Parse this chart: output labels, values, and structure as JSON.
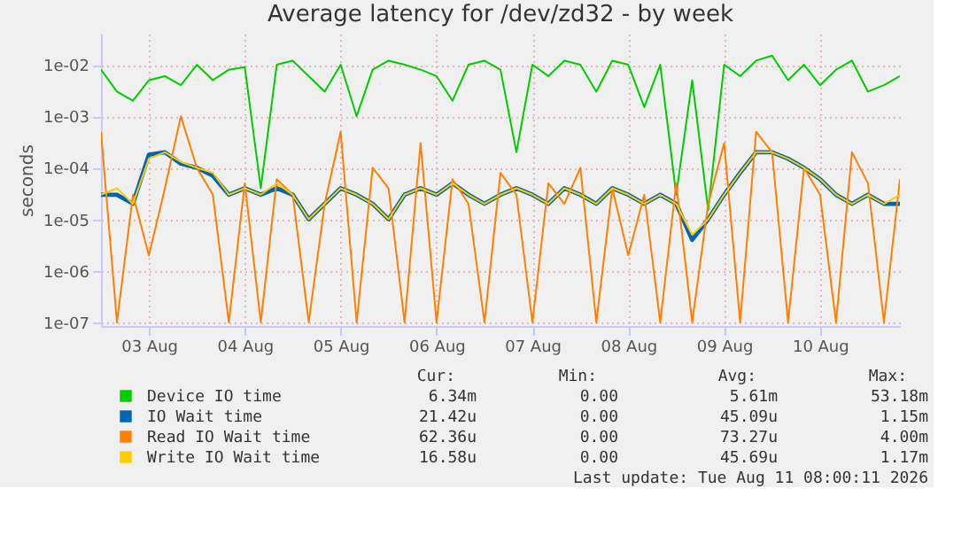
{
  "chart_data": {
    "type": "line",
    "title": "Average latency for /dev/zd32 - by week",
    "ylabel": "seconds",
    "log": "y",
    "grid": true,
    "legend": "bottom",
    "marker": "none",
    "line_style": "solid",
    "xlim": [
      "2026-08-03T00:00",
      "2026-08-11T08:00"
    ],
    "xticks": [
      {
        "value": "2026-08-03T12:00",
        "label": "03 Aug"
      },
      {
        "value": "2026-08-04T12:00",
        "label": "04 Aug"
      },
      {
        "value": "2026-08-05T12:00",
        "label": "05 Aug"
      },
      {
        "value": "2026-08-06T12:00",
        "label": "06 Aug"
      },
      {
        "value": "2026-08-07T12:00",
        "label": "07 Aug"
      },
      {
        "value": "2026-08-08T12:00",
        "label": "08 Aug"
      },
      {
        "value": "2026-08-09T12:00",
        "label": "09 Aug"
      },
      {
        "value": "2026-08-10T12:00",
        "label": "10 Aug"
      }
    ],
    "ylim": [
      8.5e-08,
      0.04
    ],
    "yticks": [
      {
        "value": 1e-07,
        "label": "1e-07"
      },
      {
        "value": 1e-06,
        "label": "1e-06"
      },
      {
        "value": 1e-05,
        "label": "1e-05"
      },
      {
        "value": 0.0001,
        "label": "1e-04"
      },
      {
        "value": 0.001,
        "label": "1e-03"
      },
      {
        "value": 0.01,
        "label": "1e-02"
      }
    ],
    "x": [
      "2026-08-03T00:00",
      "2026-08-03T04:00",
      "2026-08-03T08:00",
      "2026-08-03T12:00",
      "2026-08-03T16:00",
      "2026-08-03T20:00",
      "2026-08-04T00:00",
      "2026-08-04T04:00",
      "2026-08-04T08:00",
      "2026-08-04T12:00",
      "2026-08-04T16:00",
      "2026-08-04T20:00",
      "2026-08-05T00:00",
      "2026-08-05T04:00",
      "2026-08-05T08:00",
      "2026-08-05T12:00",
      "2026-08-05T16:00",
      "2026-08-05T20:00",
      "2026-08-06T00:00",
      "2026-08-06T04:00",
      "2026-08-06T08:00",
      "2026-08-06T12:00",
      "2026-08-06T16:00",
      "2026-08-06T20:00",
      "2026-08-07T00:00",
      "2026-08-07T04:00",
      "2026-08-07T08:00",
      "2026-08-07T12:00",
      "2026-08-07T16:00",
      "2026-08-07T20:00",
      "2026-08-08T00:00",
      "2026-08-08T04:00",
      "2026-08-08T08:00",
      "2026-08-08T12:00",
      "2026-08-08T16:00",
      "2026-08-08T20:00",
      "2026-08-09T00:00",
      "2026-08-09T04:00",
      "2026-08-09T08:00",
      "2026-08-09T12:00",
      "2026-08-09T16:00",
      "2026-08-09T20:00",
      "2026-08-10T00:00",
      "2026-08-10T04:00",
      "2026-08-10T08:00",
      "2026-08-10T12:00",
      "2026-08-10T16:00",
      "2026-08-10T20:00",
      "2026-08-11T00:00",
      "2026-08-11T04:00",
      "2026-08-11T08:00"
    ],
    "series": [
      {
        "name": "Device IO time",
        "color": "#00cc00",
        "values": [
          0.008,
          0.003,
          0.002,
          0.005,
          0.006,
          0.004,
          0.01,
          0.005,
          0.008,
          0.009,
          4e-05,
          0.01,
          0.012,
          0.006,
          0.003,
          0.01,
          0.001,
          0.008,
          0.012,
          0.01,
          0.008,
          0.006,
          0.002,
          0.01,
          0.012,
          0.008,
          0.0002,
          0.01,
          0.006,
          0.012,
          0.01,
          0.003,
          0.012,
          0.01,
          0.0015,
          0.01,
          3e-05,
          0.005,
          1.5e-05,
          0.01,
          0.006,
          0.012,
          0.015,
          0.005,
          0.01,
          0.004,
          0.008,
          0.012,
          0.003,
          0.004,
          0.006
        ]
      },
      {
        "name": "IO Wait time",
        "color": "#0066b3",
        "values": [
          3e-05,
          3e-05,
          2e-05,
          0.00018,
          0.0002,
          0.00012,
          0.0001,
          7e-05,
          3e-05,
          4e-05,
          3e-05,
          4e-05,
          3e-05,
          1e-05,
          2e-05,
          4e-05,
          3e-05,
          2e-05,
          1e-05,
          3e-05,
          4e-05,
          3e-05,
          5e-05,
          3e-05,
          2e-05,
          3e-05,
          4e-05,
          3e-05,
          2e-05,
          4e-05,
          3e-05,
          2e-05,
          4e-05,
          3e-05,
          2e-05,
          3e-05,
          2e-05,
          4e-06,
          1e-05,
          3e-05,
          8e-05,
          0.0002,
          0.0002,
          0.00015,
          0.0001,
          6e-05,
          3e-05,
          2e-05,
          3e-05,
          2e-05,
          2e-05
        ]
      },
      {
        "name": "Read IO Wait time",
        "color": "#ff8000",
        "values": [
          0.0005,
          1e-07,
          3e-05,
          2e-06,
          4e-05,
          0.001,
          0.0001,
          3e-05,
          1e-07,
          5e-05,
          1e-07,
          6e-05,
          3e-05,
          1e-07,
          2e-05,
          0.0005,
          1e-07,
          0.0001,
          4e-05,
          1e-07,
          0.0003,
          1e-07,
          6e-05,
          2e-05,
          1e-07,
          8e-05,
          3e-05,
          1e-07,
          5e-05,
          2e-05,
          0.0001,
          1e-07,
          4e-05,
          2e-06,
          3e-05,
          1e-07,
          5e-05,
          1e-07,
          2e-05,
          0.0003,
          1e-07,
          0.0005,
          0.0002,
          1e-07,
          0.0001,
          3e-05,
          1e-07,
          0.0002,
          5e-05,
          1e-07,
          6e-05
        ]
      },
      {
        "name": "Write IO Wait time",
        "color": "#ffcc00",
        "values": [
          3e-05,
          4e-05,
          2e-05,
          0.00015,
          0.0002,
          0.00013,
          0.0001,
          8e-05,
          3e-05,
          4e-05,
          3e-05,
          5e-05,
          3e-05,
          1e-05,
          2e-05,
          4e-05,
          3e-05,
          2e-05,
          1e-05,
          3e-05,
          4e-05,
          3e-05,
          5e-05,
          3e-05,
          2e-05,
          3e-05,
          4e-05,
          3e-05,
          2e-05,
          4e-05,
          3e-05,
          2e-05,
          4e-05,
          3e-05,
          2e-05,
          3e-05,
          2e-05,
          5e-06,
          1e-05,
          3e-05,
          8e-05,
          0.0002,
          0.0002,
          0.00015,
          0.0001,
          6e-05,
          3e-05,
          2e-05,
          3e-05,
          2e-05,
          3e-05
        ]
      }
    ],
    "annotations": [
      "Cur:",
      "Min:",
      "Avg:",
      "Max:",
      "6.34m",
      "0.00",
      "5.61m",
      "53.18m",
      "21.42u",
      "0.00",
      "45.09u",
      "1.15m",
      "62.36u",
      "0.00",
      "73.27u",
      "4.00m",
      "16.58u",
      "0.00",
      "45.69u",
      "1.17m",
      "Last update: Tue Aug 11 08:00:11 2026"
    ]
  }
}
